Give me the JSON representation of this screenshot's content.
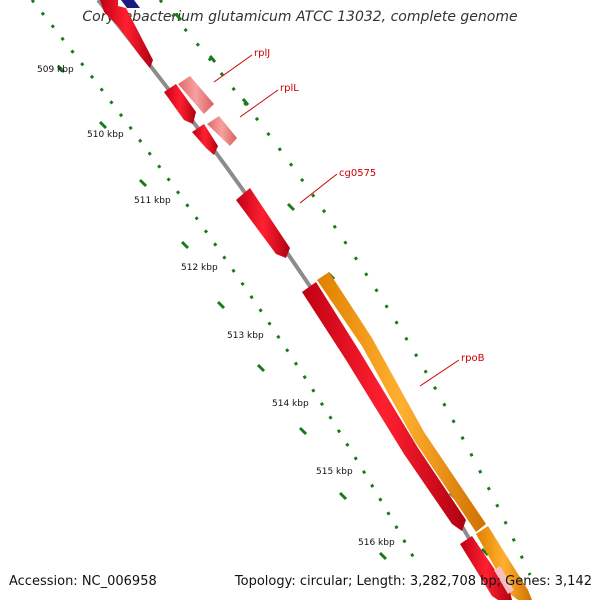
{
  "title": "Corynebacterium glutamicum ATCC 13032, complete genome",
  "footer": {
    "accession": "Accession: NC_006958",
    "summary": "Topology: circular; Length: 3,282,708 bp; Genes: 3,142"
  },
  "colors": {
    "backbone": "#8c8c8c",
    "tick_green": "#1a7a1a",
    "gene_red": "#e8001c",
    "gene_pink": "#f08080",
    "gene_orange": "#ff9900",
    "gene_navy": "#1a1a80",
    "label_red": "#cc0000"
  },
  "kbp_labels": [
    "509 kbp",
    "510 kbp",
    "511 kbp",
    "512 kbp",
    "513 kbp",
    "514 kbp",
    "515 kbp",
    "516 kbp"
  ],
  "gene_labels": [
    "rplJ",
    "rplL",
    "cg0575",
    "rpoB"
  ]
}
